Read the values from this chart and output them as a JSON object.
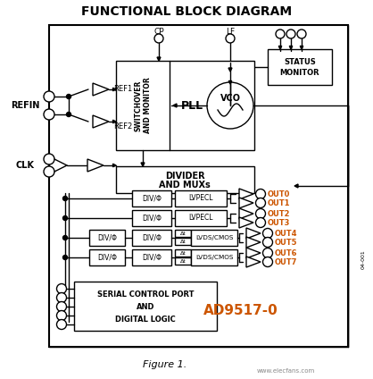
{
  "title": "FUNCTIONAL BLOCK DIAGRAM",
  "figure_label": "Figure 1.",
  "part_number": "AD9517-0",
  "bg": "#ffffff",
  "lc": "#000000",
  "tc": "#000000",
  "oc": "#cc5500",
  "fig_width": 4.18,
  "fig_height": 4.24,
  "dpi": 100
}
